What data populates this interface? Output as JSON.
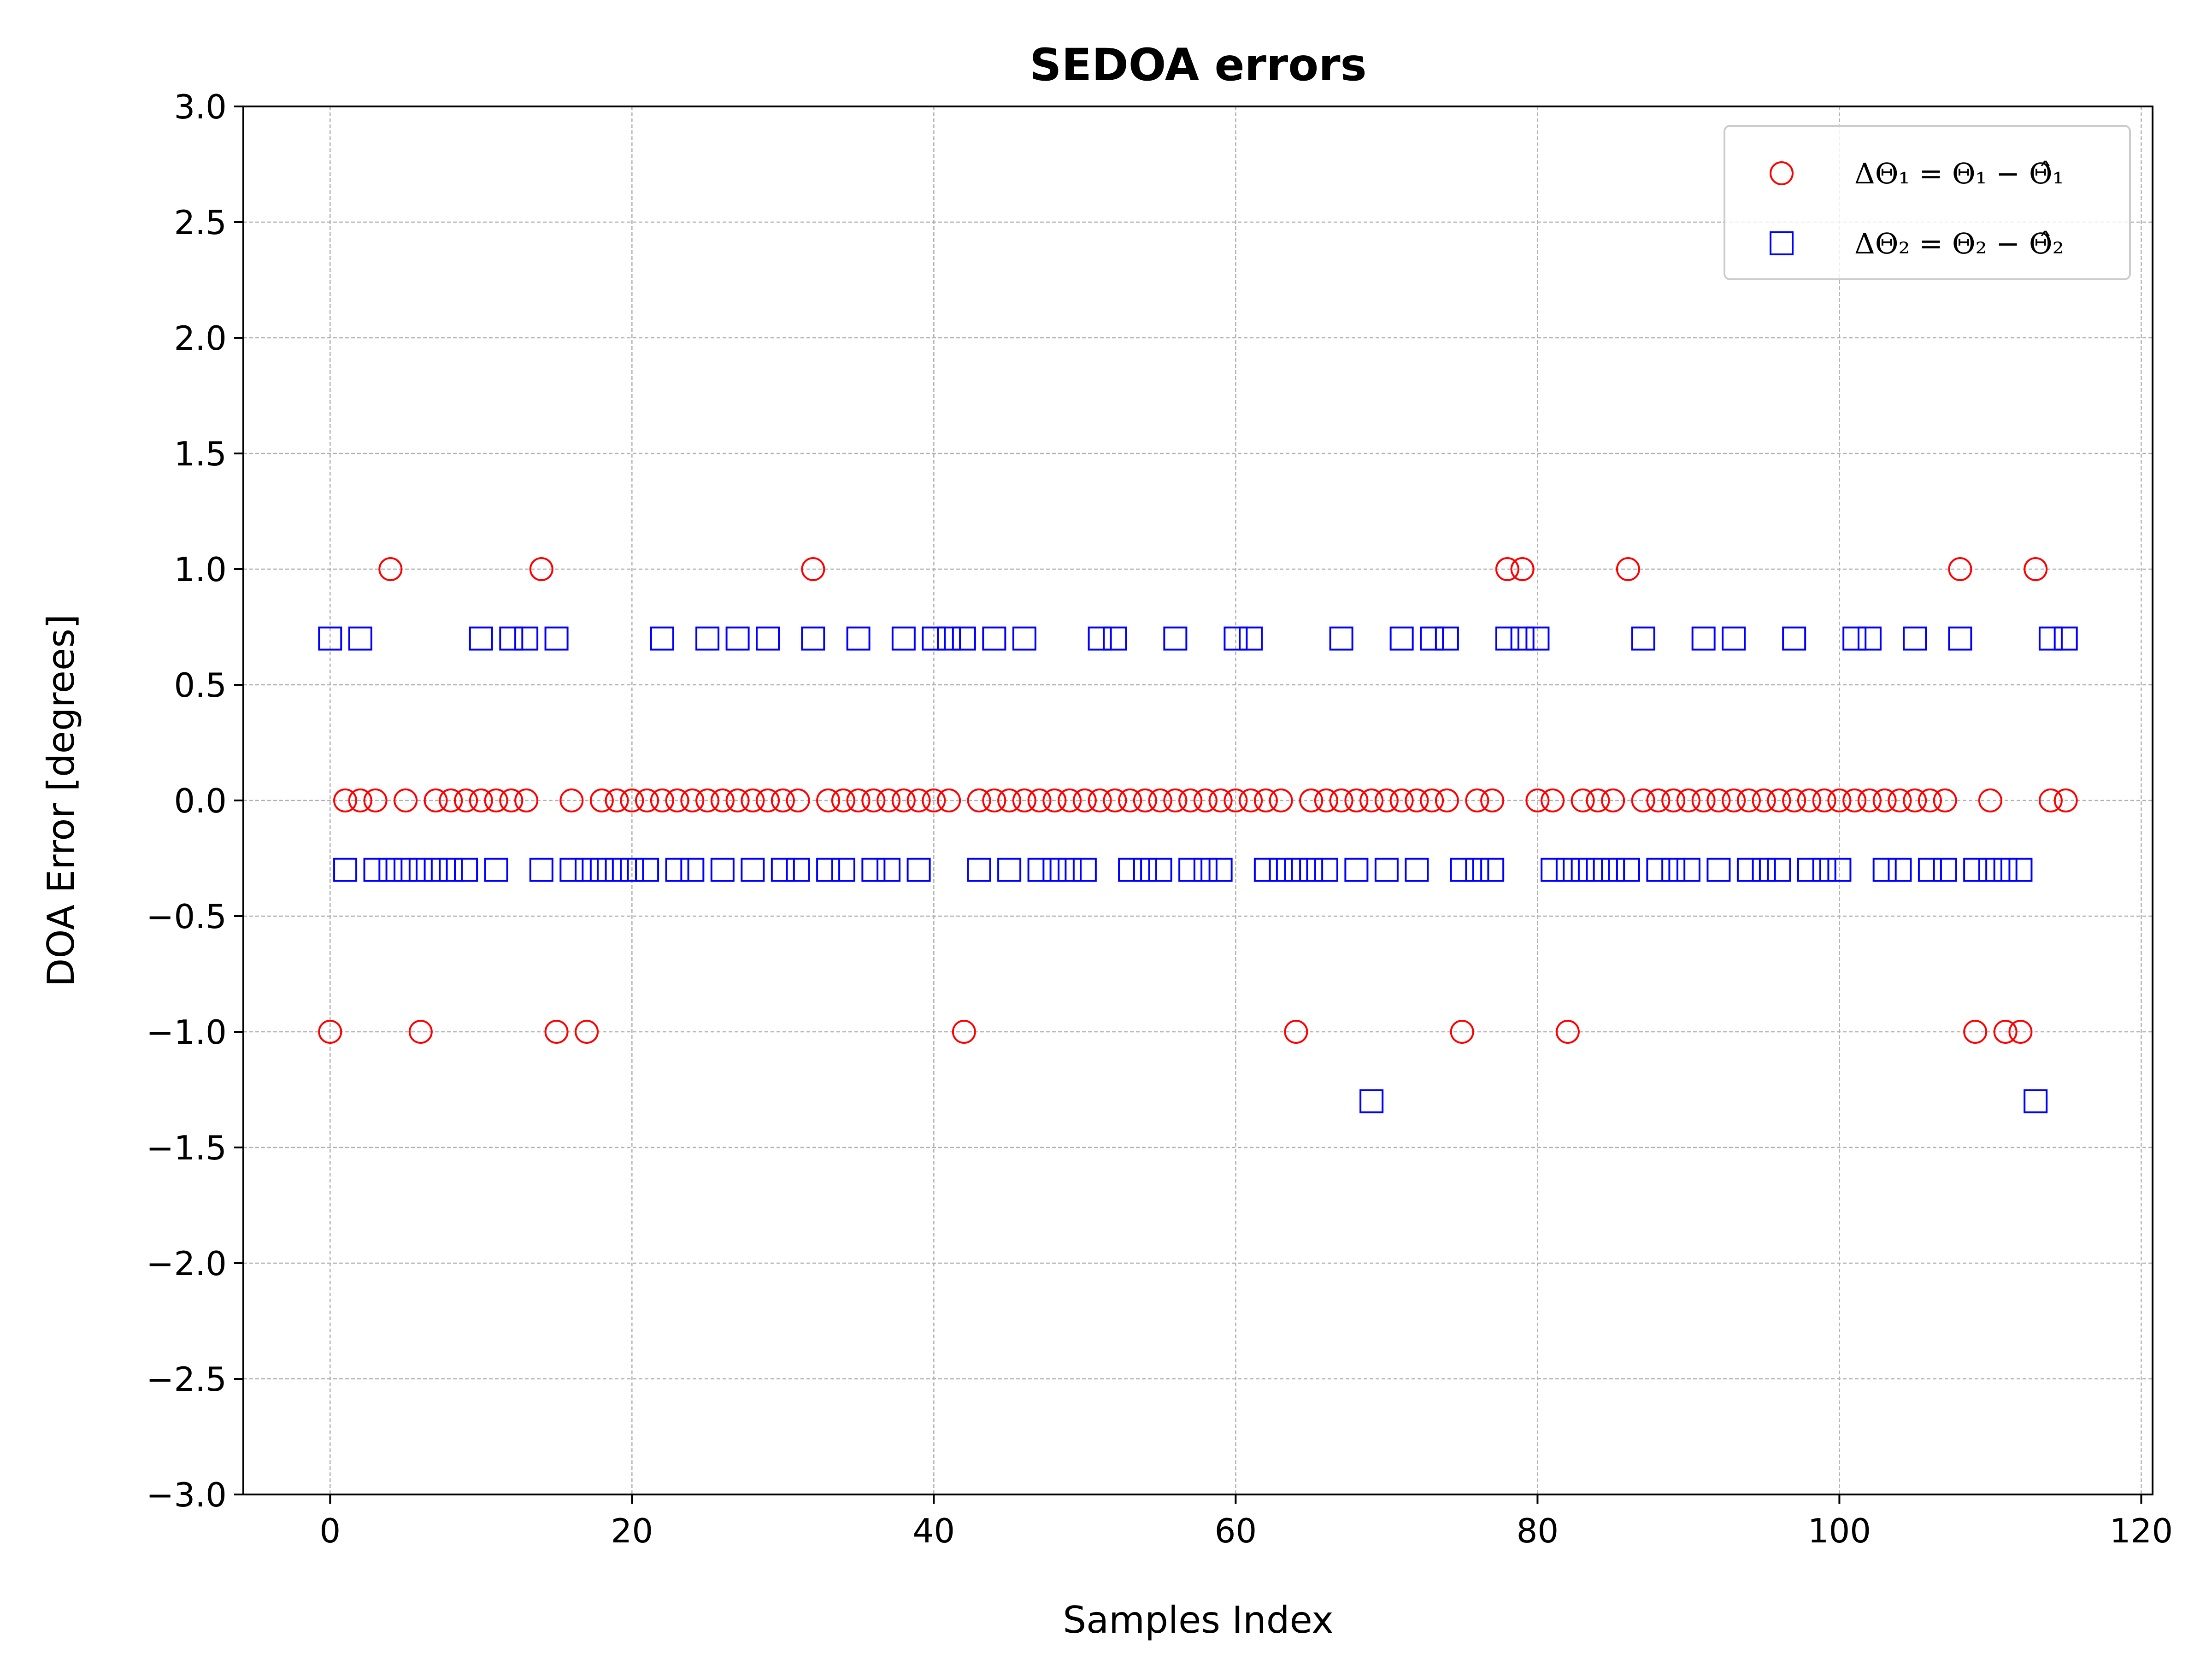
{
  "chart_data": {
    "type": "scatter",
    "title": "SEDOA errors",
    "xlabel": "Samples Index",
    "ylabel": "DOA Error [degrees]",
    "xlim": [
      -5.75,
      120.75
    ],
    "ylim": [
      -3.0,
      3.0
    ],
    "xticks": [
      0,
      20,
      40,
      60,
      80,
      100,
      120
    ],
    "yticks": [
      -3.0,
      -2.5,
      -2.0,
      -1.5,
      -1.0,
      -0.5,
      0.0,
      0.5,
      1.0,
      1.5,
      2.0,
      2.5,
      3.0
    ],
    "xtick_labels": [
      "0",
      "20",
      "40",
      "60",
      "80",
      "100",
      "120"
    ],
    "ytick_labels": [
      "−3.0",
      "−2.5",
      "−2.0",
      "−1.5",
      "−1.0",
      "−0.5",
      "0.0",
      "0.5",
      "1.0",
      "1.5",
      "2.0",
      "2.5",
      "3.0"
    ],
    "grid": true,
    "legend_position": "top-right",
    "series": [
      {
        "name": "ΔΘ₁ = Θ₁ − Θ̂₁",
        "marker": "circle",
        "color": "#ff0000",
        "x": [
          0,
          1,
          2,
          3,
          4,
          5,
          6,
          7,
          8,
          9,
          10,
          11,
          12,
          13,
          14,
          15,
          16,
          17,
          18,
          19,
          20,
          21,
          22,
          23,
          24,
          25,
          26,
          27,
          28,
          29,
          30,
          31,
          32,
          33,
          34,
          35,
          36,
          37,
          38,
          39,
          40,
          41,
          42,
          43,
          44,
          45,
          46,
          47,
          48,
          49,
          50,
          51,
          52,
          53,
          54,
          55,
          56,
          57,
          58,
          59,
          60,
          61,
          62,
          63,
          64,
          65,
          66,
          67,
          68,
          69,
          70,
          71,
          72,
          73,
          74,
          75,
          76,
          77,
          78,
          79,
          80,
          81,
          82,
          83,
          84,
          85,
          86,
          87,
          88,
          89,
          90,
          91,
          92,
          93,
          94,
          95,
          96,
          97,
          98,
          99,
          100,
          101,
          102,
          103,
          104,
          105,
          106,
          107,
          108,
          109,
          110,
          111,
          112,
          113,
          114,
          115
        ],
        "y": [
          -1,
          0,
          0,
          0,
          1,
          0,
          -1,
          0,
          0,
          0,
          0,
          0,
          0,
          0,
          1,
          -1,
          0,
          -1,
          0,
          0,
          0,
          0,
          0,
          0,
          0,
          0,
          0,
          0,
          0,
          0,
          0,
          0,
          1,
          0,
          0,
          0,
          0,
          0,
          0,
          0,
          0,
          0,
          -1,
          0,
          0,
          0,
          0,
          0,
          0,
          0,
          0,
          0,
          0,
          0,
          0,
          0,
          0,
          0,
          0,
          0,
          0,
          0,
          0,
          0,
          -1,
          0,
          0,
          0,
          0,
          0,
          0,
          0,
          0,
          0,
          0,
          -1,
          0,
          0,
          1,
          1,
          0,
          0,
          -1,
          0,
          0,
          0,
          1,
          0,
          0,
          0,
          0,
          0,
          0,
          0,
          0,
          0,
          0,
          0,
          0,
          0,
          0,
          0,
          0,
          0,
          0,
          0,
          0,
          0,
          1,
          -1,
          0,
          -1,
          -1,
          1,
          0,
          0
        ]
      },
      {
        "name": "ΔΘ₂ = Θ₂ − Θ̂₂",
        "marker": "square",
        "color": "#0000ff",
        "x": [
          0,
          1,
          2,
          3,
          4,
          5,
          6,
          7,
          8,
          9,
          10,
          11,
          12,
          13,
          14,
          15,
          16,
          17,
          18,
          19,
          20,
          21,
          22,
          23,
          24,
          25,
          26,
          27,
          28,
          29,
          30,
          31,
          32,
          33,
          34,
          35,
          36,
          37,
          38,
          39,
          40,
          41,
          42,
          43,
          44,
          45,
          46,
          47,
          48,
          49,
          50,
          51,
          52,
          53,
          54,
          55,
          56,
          57,
          58,
          59,
          60,
          61,
          62,
          63,
          64,
          65,
          66,
          67,
          68,
          69,
          70,
          71,
          72,
          73,
          74,
          75,
          76,
          77,
          78,
          79,
          80,
          81,
          82,
          83,
          84,
          85,
          86,
          87,
          88,
          89,
          90,
          91,
          92,
          93,
          94,
          95,
          96,
          97,
          98,
          99,
          100,
          101,
          102,
          103,
          104,
          105,
          106,
          107,
          108,
          109,
          110,
          111,
          112,
          113,
          114,
          115
        ],
        "y": [
          0.7,
          -0.3,
          0.7,
          -0.3,
          -0.3,
          -0.3,
          -0.3,
          -0.3,
          -0.3,
          -0.3,
          0.7,
          -0.3,
          0.7,
          0.7,
          -0.3,
          0.7,
          -0.3,
          -0.3,
          -0.3,
          -0.3,
          -0.3,
          -0.3,
          0.7,
          -0.3,
          -0.3,
          0.7,
          -0.3,
          0.7,
          -0.3,
          0.7,
          -0.3,
          -0.3,
          0.7,
          -0.3,
          -0.3,
          0.7,
          -0.3,
          -0.3,
          0.7,
          -0.3,
          0.7,
          0.7,
          0.7,
          -0.3,
          0.7,
          -0.3,
          0.7,
          -0.3,
          -0.3,
          -0.3,
          -0.3,
          0.7,
          0.7,
          -0.3,
          -0.3,
          -0.3,
          0.7,
          -0.3,
          -0.3,
          -0.3,
          0.7,
          0.7,
          -0.3,
          -0.3,
          -0.3,
          -0.3,
          -0.3,
          0.7,
          -0.3,
          -1.3,
          -0.3,
          0.7,
          -0.3,
          0.7,
          0.7,
          -0.3,
          -0.3,
          -0.3,
          0.7,
          0.7,
          0.7,
          -0.3,
          -0.3,
          -0.3,
          -0.3,
          -0.3,
          -0.3,
          0.7,
          -0.3,
          -0.3,
          -0.3,
          0.7,
          -0.3,
          0.7,
          -0.3,
          -0.3,
          -0.3,
          0.7,
          -0.3,
          -0.3,
          -0.3,
          0.7,
          0.7,
          -0.3,
          -0.3,
          0.7,
          -0.3,
          -0.3,
          0.7,
          -0.3,
          -0.3,
          -0.3,
          -0.3,
          -1.3,
          0.7,
          0.7
        ]
      }
    ]
  }
}
